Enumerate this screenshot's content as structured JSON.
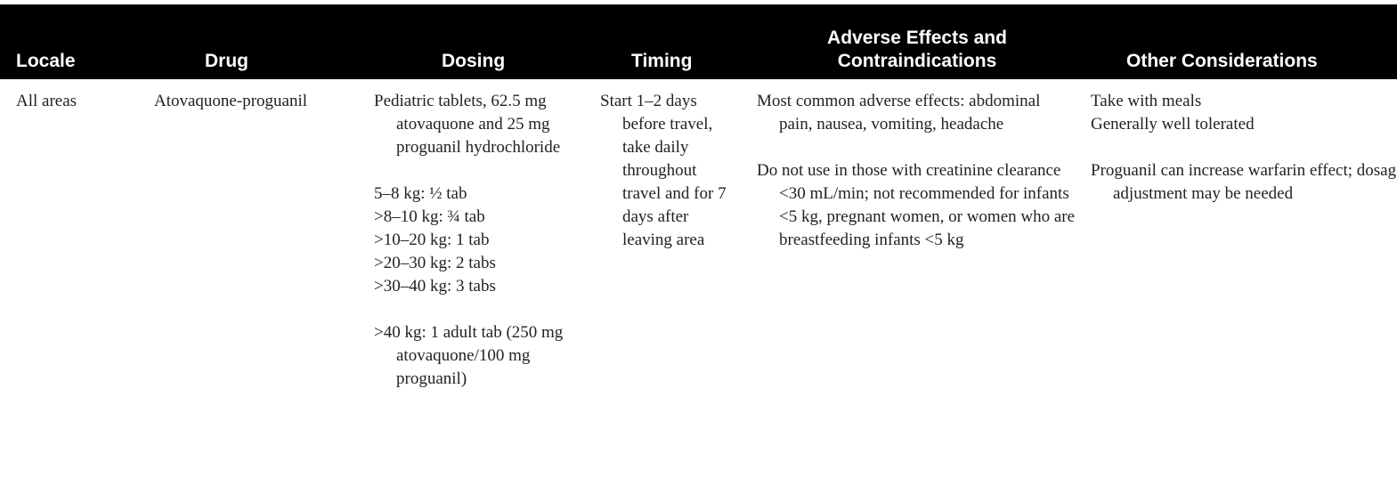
{
  "headers": {
    "locale": "Locale",
    "drug": "Drug",
    "dosing": "Dosing",
    "timing": "Timing",
    "adverse_line1": "Adverse Effects and",
    "adverse_line2": "Contraindications",
    "other": "Other Considerations"
  },
  "row": {
    "locale": "All areas",
    "drug": "Atovaquone-proguanil",
    "dosing": {
      "intro": "Pediatric tablets, 62.5 mg atovaquone and 25 mg proguanil hydrochloride",
      "doses": [
        "5–8 kg: ½ tab",
        ">8–10 kg: ¾ tab",
        ">10–20 kg: 1 tab",
        ">20–30 kg: 2 tabs",
        ">30–40 kg: 3 tabs"
      ],
      "adult": ">40 kg: 1 adult tab (250 mg atovaquone/100 mg proguanil)"
    },
    "timing": "Start 1–2 days before travel, take daily throughout travel and for 7 days after leaving area",
    "adverse": {
      "common": "Most common adverse effects: abdominal pain, nausea, vomiting, headache",
      "contra": "Do not use in those with creatinine clearance <30 mL/min; not recommended for infants <5 kg, pregnant women, or women who are breastfeeding infants <5 kg"
    },
    "other": {
      "line1": "Take with meals",
      "line2": "Generally well tolerated",
      "warfarin": "Proguanil can increase warfarin effect; dosage adjustment may be needed"
    }
  }
}
